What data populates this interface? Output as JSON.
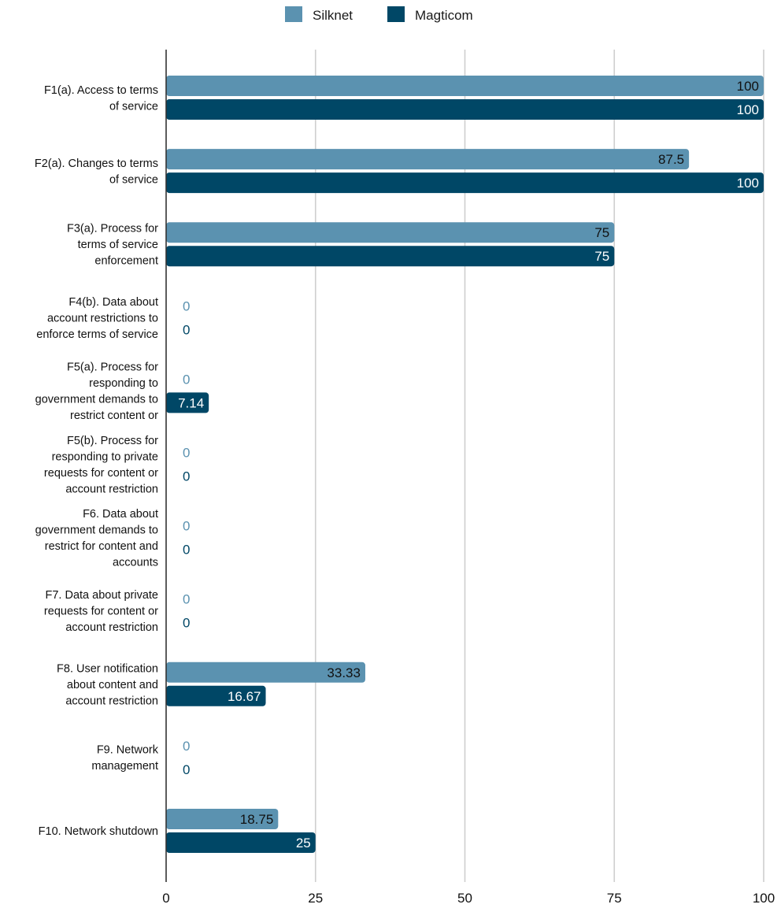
{
  "chart_data": {
    "type": "bar",
    "orientation": "horizontal",
    "title": "",
    "xlabel": "",
    "ylabel": "",
    "xlim": [
      0,
      100
    ],
    "xticks": [
      "0",
      "25",
      "50",
      "75",
      "100"
    ],
    "grid": true,
    "legend_position": "top-center",
    "categories": [
      [
        "F1(a). Access to terms",
        "of service"
      ],
      [
        "F2(a). Changes to terms",
        "of service"
      ],
      [
        "F3(a). Process for",
        "terms of service",
        "enforcement"
      ],
      [
        "F4(b). Data about",
        "account restrictions to",
        "enforce terms of service"
      ],
      [
        "F5(a). Process for",
        "responding to",
        "government demands to",
        "restrict content or"
      ],
      [
        "F5(b). Process for",
        "responding to private",
        "requests for content or",
        "account restriction"
      ],
      [
        "F6. Data about",
        "government demands to",
        "restrict for content and",
        "accounts"
      ],
      [
        "F7. Data about private",
        "requests for content or",
        "account restriction"
      ],
      [
        "F8. User notification",
        "about content and",
        "account restriction"
      ],
      [
        "F9. Network",
        "management"
      ],
      [
        "F10. Network shutdown"
      ]
    ],
    "series": [
      {
        "name": "Silknet",
        "color": "#5b92b0",
        "label_color": "#111111",
        "zero_label_color": "#5b92b0",
        "values": [
          100,
          87.5,
          75,
          0,
          0,
          0,
          0,
          0,
          33.33,
          0,
          18.75
        ],
        "labels": [
          "100",
          "87.5",
          "75",
          "0",
          "0",
          "0",
          "0",
          "0",
          "33.33",
          "0",
          "18.75"
        ]
      },
      {
        "name": "Magticom",
        "color": "#004766",
        "label_color": "#ffffff",
        "zero_label_color": "#004766",
        "values": [
          100,
          100,
          75,
          0,
          7.14,
          0,
          0,
          0,
          16.67,
          0,
          25
        ],
        "labels": [
          "100",
          "100",
          "75",
          "0",
          "7.14",
          "0",
          "0",
          "0",
          "16.67",
          "0",
          "25"
        ]
      }
    ]
  }
}
